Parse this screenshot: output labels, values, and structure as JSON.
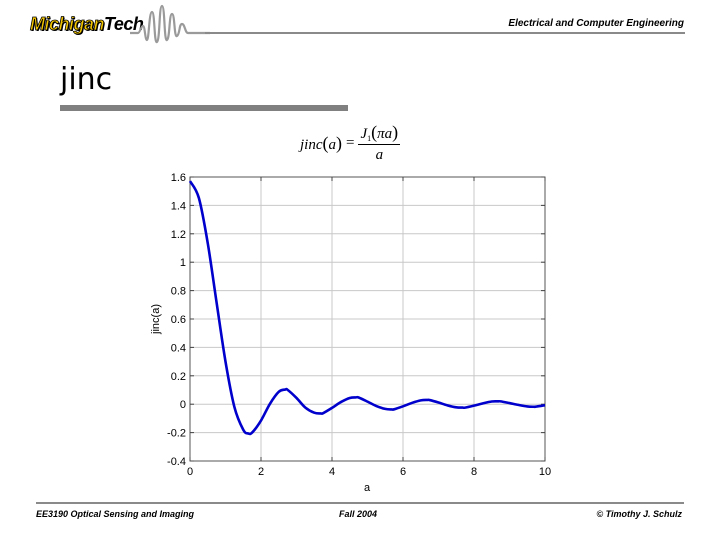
{
  "header": {
    "logo_part1": "Michigan",
    "logo_part2": "Tech",
    "department": "Electrical and Computer Engineering"
  },
  "slide": {
    "title": "jinc",
    "formula": {
      "lhs": "jinc",
      "lhs_arg": "a",
      "equals": "=",
      "numerator_fn": "J",
      "numerator_sub": "1",
      "numerator_arg": "πa",
      "denominator": "a"
    }
  },
  "chart_data": {
    "type": "line",
    "title": "",
    "xlabel": "a",
    "ylabel": "jinc(a)",
    "xlim": [
      0,
      10
    ],
    "ylim": [
      -0.4,
      1.6
    ],
    "xticks": [
      0,
      2,
      4,
      6,
      8,
      10
    ],
    "yticks": [
      -0.4,
      -0.2,
      0,
      0.2,
      0.4,
      0.6,
      0.8,
      1,
      1.2,
      1.4,
      1.6
    ],
    "grid": true,
    "line_color": "#0000cc",
    "series": [
      {
        "name": "jinc(a)",
        "x": [
          0,
          0.25,
          0.5,
          0.75,
          1.0,
          1.25,
          1.5,
          1.64,
          1.75,
          2.0,
          2.25,
          2.5,
          2.68,
          2.75,
          3.0,
          3.25,
          3.5,
          3.68,
          3.75,
          4.0,
          4.25,
          4.5,
          4.68,
          4.75,
          5.0,
          5.25,
          5.5,
          5.68,
          5.75,
          6.0,
          6.25,
          6.5,
          6.68,
          6.75,
          7.0,
          7.25,
          7.5,
          7.68,
          7.75,
          8.0,
          8.25,
          8.5,
          8.68,
          8.75,
          9.0,
          9.25,
          9.5,
          9.68,
          9.75,
          10.0
        ],
        "y": [
          1.571,
          1.452,
          1.134,
          0.714,
          0.3,
          -0.019,
          -0.18,
          -0.206,
          -0.2,
          -0.115,
          0.002,
          0.087,
          0.103,
          0.101,
          0.044,
          -0.024,
          -0.06,
          -0.065,
          -0.063,
          -0.026,
          0.015,
          0.044,
          0.048,
          0.047,
          0.018,
          -0.013,
          -0.033,
          -0.037,
          -0.036,
          -0.015,
          0.009,
          0.027,
          0.03,
          0.029,
          0.012,
          -0.008,
          -0.022,
          -0.024,
          -0.024,
          -0.01,
          0.006,
          0.019,
          0.02,
          0.02,
          0.008,
          -0.005,
          -0.016,
          -0.018,
          -0.017,
          -0.007
        ]
      }
    ]
  },
  "footer": {
    "course": "EE3190 Optical Sensing and Imaging",
    "term": "Fall 2004",
    "copyright": "© Timothy J. Schulz"
  }
}
